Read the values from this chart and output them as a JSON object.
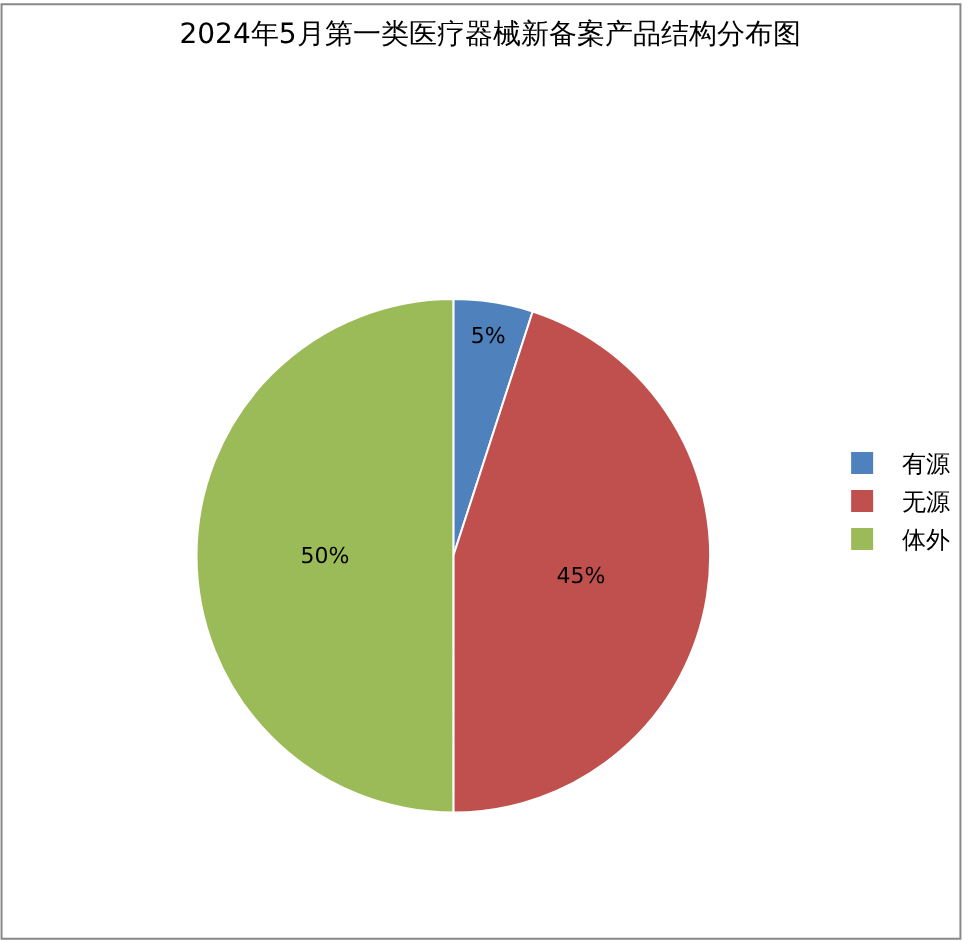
{
  "chart_data": {
    "type": "pie",
    "title": "2024年5月第一类医疗器械新备案产品结构分布图",
    "categories": [
      "有源",
      "无源",
      "体外"
    ],
    "values": [
      5,
      45,
      50
    ],
    "colors": [
      "#4f81bd",
      "#c0504d",
      "#9bbb59"
    ],
    "value_labels": [
      "5%",
      "45%",
      "50%"
    ],
    "legend": "right"
  }
}
